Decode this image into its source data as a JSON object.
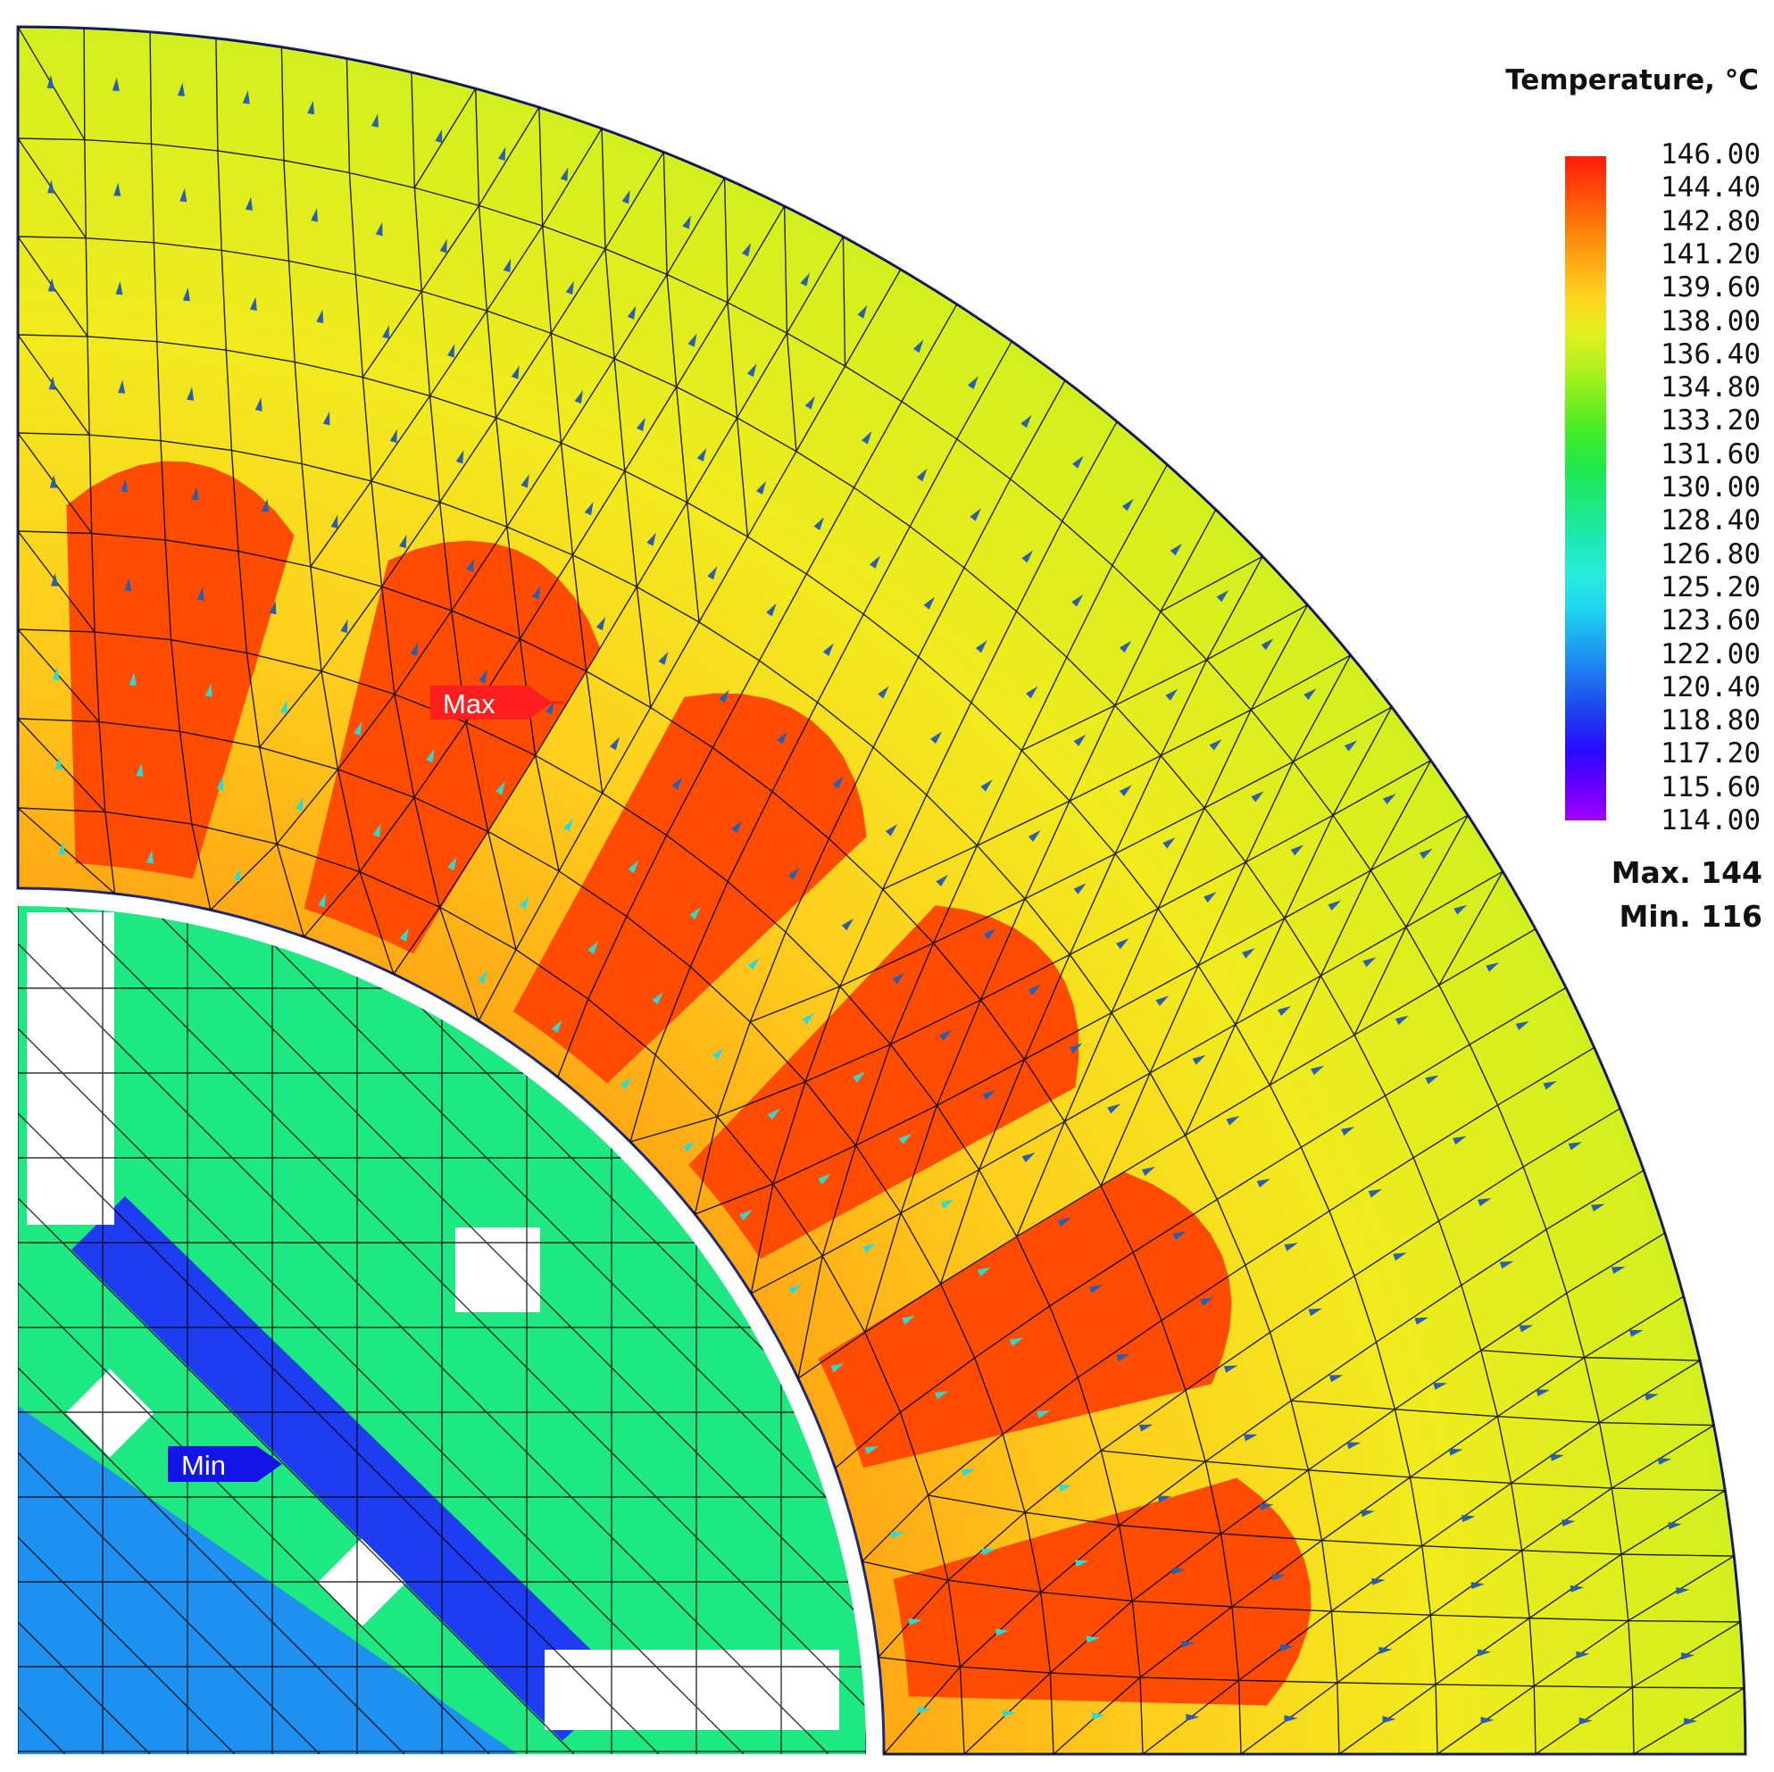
{
  "legend": {
    "title": "Temperature, °C",
    "ticks": [
      "146.00",
      "144.40",
      "142.80",
      "141.20",
      "139.60",
      "138.00",
      "136.40",
      "134.80",
      "133.20",
      "131.60",
      "130.00",
      "128.40",
      "126.80",
      "125.20",
      "123.60",
      "122.00",
      "120.40",
      "118.80",
      "117.20",
      "115.60",
      "114.00"
    ],
    "colors": [
      "#ff1a0a",
      "#ff4a0a",
      "#ff7a0a",
      "#ffa814",
      "#ffd21e",
      "#e6f01e",
      "#b4f01e",
      "#78ee1e",
      "#3cec28",
      "#1ee850",
      "#1ee882",
      "#1ee8b4",
      "#28ecdc",
      "#1ed2f0",
      "#1ea0f0",
      "#1e6ef0",
      "#1e3cf0",
      "#280aff",
      "#6400ff",
      "#a000ff"
    ]
  },
  "stats": {
    "max": "Max. 144",
    "min": "Min. 116"
  },
  "markers": {
    "max": "Max",
    "min": "Min"
  },
  "palette": {
    "stator_outer": "#d9f018",
    "stator_mid": "#ffd21e",
    "stator_inner": "#ffa814",
    "winding": "#ff4c00",
    "rotor_core": "#1ee882",
    "rotor_shaft": "#1e90f0",
    "magnet": "#1e3cf0",
    "mesh_line": "#000000"
  }
}
